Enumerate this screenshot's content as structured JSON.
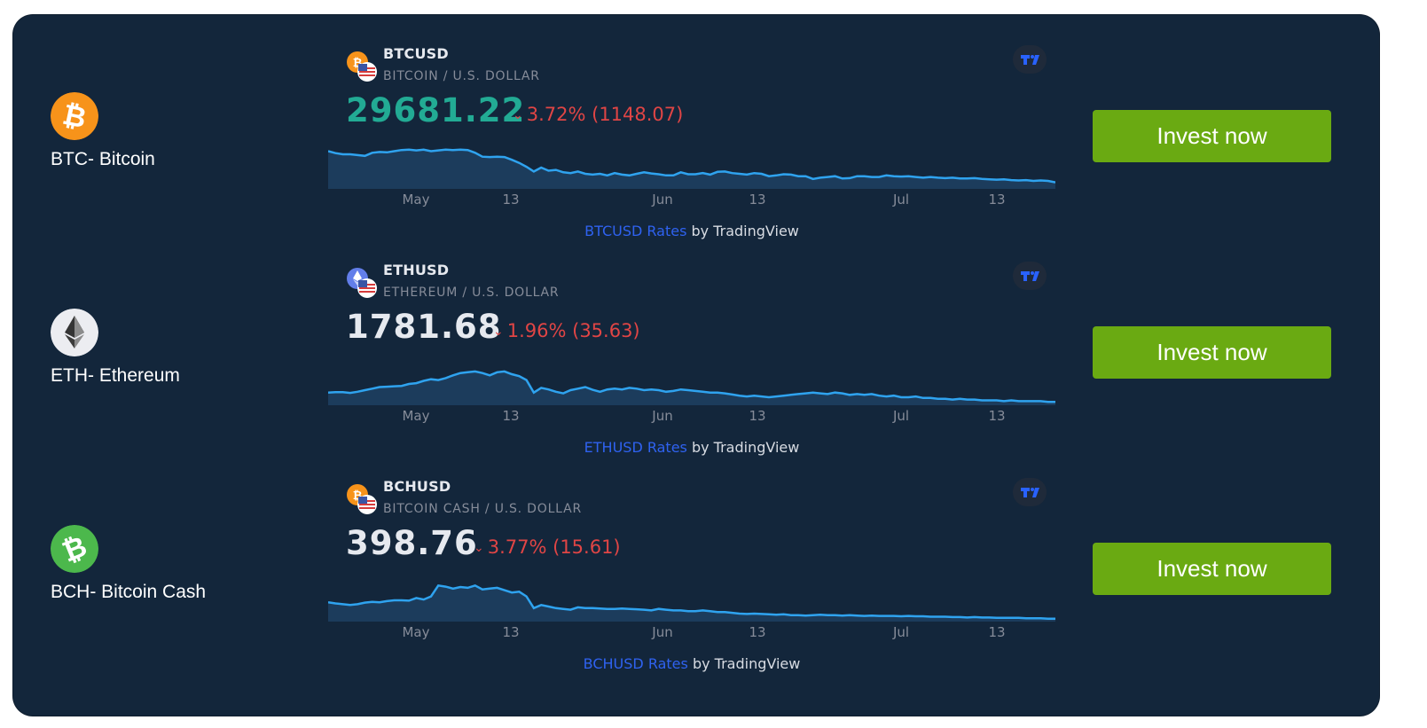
{
  "rows": [
    {
      "label": "BTC- Bitcoin",
      "icon": "bitcoin-icon",
      "icon_color": "#f7931a",
      "symbol": "BTCUSD",
      "pair": "BITCOIN / U.S. DOLLAR",
      "price": "29681.22",
      "price_color": "#22ab94",
      "change": "3.72% (1148.07)",
      "direction": "down",
      "axis": [
        "May",
        "13",
        "Jun",
        "13",
        "Jul",
        "13"
      ],
      "attrib_link": "BTCUSD Rates",
      "attrib_suffix": " by TradingView",
      "button": "Invest now",
      "chart_data": {
        "type": "area",
        "values": [
          0.92,
          0.87,
          0.84,
          0.84,
          0.82,
          0.8,
          0.88,
          0.9,
          0.89,
          0.92,
          0.95,
          0.96,
          0.94,
          0.96,
          0.92,
          0.94,
          0.96,
          0.95,
          0.96,
          0.95,
          0.88,
          0.78,
          0.77,
          0.78,
          0.77,
          0.7,
          0.62,
          0.52,
          0.4,
          0.5,
          0.42,
          0.44,
          0.38,
          0.36,
          0.4,
          0.34,
          0.32,
          0.34,
          0.3,
          0.36,
          0.32,
          0.3,
          0.34,
          0.38,
          0.35,
          0.33,
          0.3,
          0.3,
          0.38,
          0.33,
          0.33,
          0.36,
          0.32,
          0.39,
          0.4,
          0.36,
          0.34,
          0.32,
          0.36,
          0.34,
          0.28,
          0.3,
          0.33,
          0.32,
          0.28,
          0.28,
          0.21,
          0.24,
          0.26,
          0.28,
          0.22,
          0.23,
          0.28,
          0.28,
          0.26,
          0.26,
          0.3,
          0.28,
          0.27,
          0.28,
          0.26,
          0.24,
          0.26,
          0.24,
          0.23,
          0.24,
          0.22,
          0.22,
          0.23,
          0.21,
          0.2,
          0.19,
          0.2,
          0.18,
          0.17,
          0.18,
          0.16,
          0.17,
          0.16,
          0.12
        ]
      }
    },
    {
      "label": "ETH- Ethereum",
      "icon": "ethereum-icon",
      "icon_color": "#ecedf1",
      "symbol": "ETHUSD",
      "pair": "ETHEREUM / U.S. DOLLAR",
      "price": "1781.68",
      "price_color": "#e6e9ef",
      "change": "1.96% (35.63)",
      "direction": "down",
      "axis": [
        "May",
        "13",
        "Jun",
        "13",
        "Jul",
        "13"
      ],
      "attrib_link": "ETHUSD Rates",
      "attrib_suffix": " by TradingView",
      "button": "Invest now",
      "chart_data": {
        "type": "area",
        "values": [
          0.28,
          0.29,
          0.29,
          0.27,
          0.3,
          0.34,
          0.38,
          0.42,
          0.43,
          0.44,
          0.45,
          0.5,
          0.52,
          0.58,
          0.62,
          0.6,
          0.65,
          0.72,
          0.78,
          0.8,
          0.82,
          0.78,
          0.72,
          0.8,
          0.82,
          0.75,
          0.7,
          0.6,
          0.28,
          0.4,
          0.36,
          0.3,
          0.26,
          0.34,
          0.38,
          0.42,
          0.35,
          0.3,
          0.36,
          0.38,
          0.36,
          0.4,
          0.38,
          0.34,
          0.36,
          0.34,
          0.3,
          0.32,
          0.36,
          0.34,
          0.32,
          0.3,
          0.28,
          0.28,
          0.26,
          0.23,
          0.2,
          0.18,
          0.2,
          0.18,
          0.16,
          0.18,
          0.2,
          0.22,
          0.24,
          0.26,
          0.28,
          0.26,
          0.24,
          0.28,
          0.26,
          0.22,
          0.24,
          0.22,
          0.24,
          0.2,
          0.18,
          0.2,
          0.16,
          0.16,
          0.18,
          0.14,
          0.14,
          0.12,
          0.12,
          0.1,
          0.12,
          0.1,
          0.1,
          0.08,
          0.08,
          0.08,
          0.06,
          0.08,
          0.06,
          0.06,
          0.06,
          0.06,
          0.04,
          0.04
        ]
      }
    },
    {
      "label": "BCH- Bitcoin Cash",
      "icon": "bitcoin-cash-icon",
      "icon_color": "#4cb84c",
      "symbol": "BCHUSD",
      "pair": "BITCOIN CASH / U.S. DOLLAR",
      "price": "398.76",
      "price_color": "#e6e9ef",
      "change": "3.77% (15.61)",
      "direction": "down",
      "axis": [
        "May",
        "13",
        "Jun",
        "13",
        "Jul",
        "13"
      ],
      "attrib_link": "BCHUSD Rates",
      "attrib_suffix": " by TradingView",
      "button": "Invest now",
      "chart_data": {
        "type": "area",
        "values": [
          0.45,
          0.42,
          0.4,
          0.38,
          0.4,
          0.44,
          0.46,
          0.45,
          0.48,
          0.5,
          0.5,
          0.49,
          0.56,
          0.52,
          0.6,
          0.88,
          0.85,
          0.8,
          0.84,
          0.82,
          0.88,
          0.78,
          0.8,
          0.82,
          0.76,
          0.7,
          0.72,
          0.6,
          0.3,
          0.38,
          0.34,
          0.3,
          0.28,
          0.26,
          0.32,
          0.3,
          0.3,
          0.29,
          0.28,
          0.28,
          0.29,
          0.28,
          0.27,
          0.26,
          0.24,
          0.28,
          0.26,
          0.24,
          0.24,
          0.22,
          0.22,
          0.24,
          0.22,
          0.2,
          0.2,
          0.18,
          0.16,
          0.15,
          0.16,
          0.15,
          0.14,
          0.13,
          0.14,
          0.12,
          0.12,
          0.11,
          0.12,
          0.13,
          0.12,
          0.12,
          0.11,
          0.12,
          0.11,
          0.1,
          0.11,
          0.1,
          0.1,
          0.1,
          0.09,
          0.1,
          0.09,
          0.09,
          0.08,
          0.08,
          0.08,
          0.07,
          0.07,
          0.06,
          0.07,
          0.06,
          0.06,
          0.05,
          0.05,
          0.05,
          0.05,
          0.04,
          0.04,
          0.04,
          0.03,
          0.03
        ]
      }
    }
  ],
  "colors": {
    "panel": "#13263b",
    "line": "#2fa3ef",
    "area": "#1c3c5c",
    "down": "#e04545",
    "button": "#6aaa12",
    "link": "#2f62f0"
  }
}
